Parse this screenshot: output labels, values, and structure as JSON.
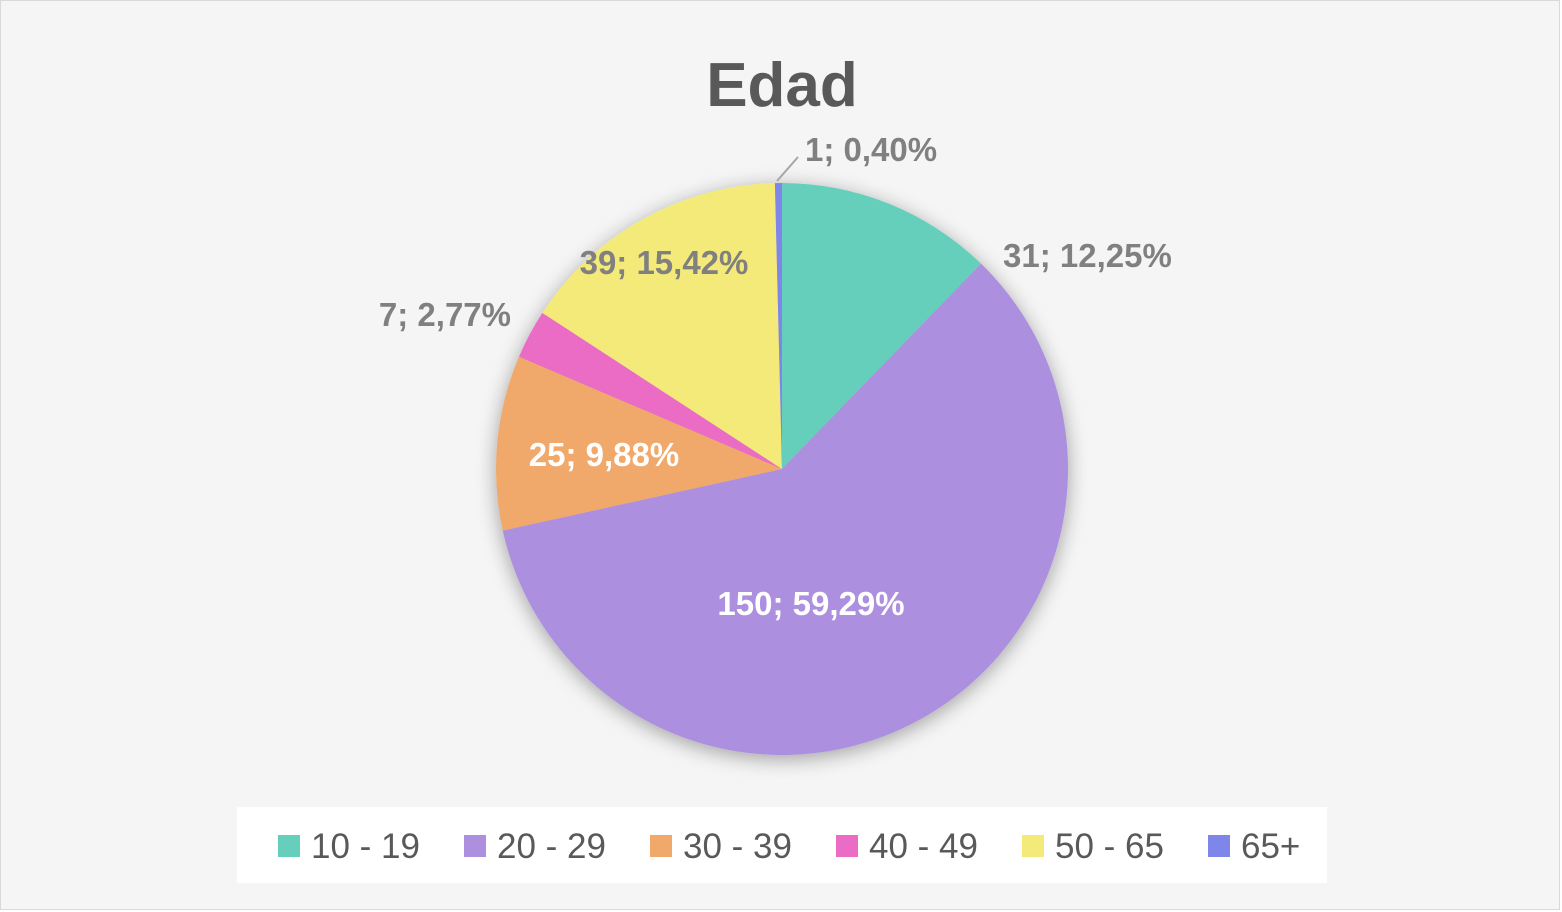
{
  "chart_data": {
    "type": "pie",
    "title": "Edad",
    "slices": [
      {
        "name": "10 - 19",
        "value": 31,
        "percent_label": "12,25%",
        "color": "#66cfbb"
      },
      {
        "name": "20 - 29",
        "value": 150,
        "percent_label": "59,29%",
        "color": "#ad8fe0"
      },
      {
        "name": "30 - 39",
        "value": 25,
        "percent_label": "9,88%",
        "color": "#f0a96b"
      },
      {
        "name": "40 - 49",
        "value": 7,
        "percent_label": "2,77%",
        "color": "#ea6cc4"
      },
      {
        "name": "50 - 65",
        "value": 39,
        "percent_label": "15,42%",
        "color": "#f4ea79"
      },
      {
        "name": "65+",
        "value": 1,
        "percent_label": "0,40%",
        "color": "#7e86ea"
      }
    ],
    "label_format": "value; percent",
    "legend_position": "bottom"
  },
  "colors": {
    "label_outside": "#808080",
    "label_inside": "#ffffff",
    "title": "#595959",
    "leader_line": "#a6a6a6"
  }
}
